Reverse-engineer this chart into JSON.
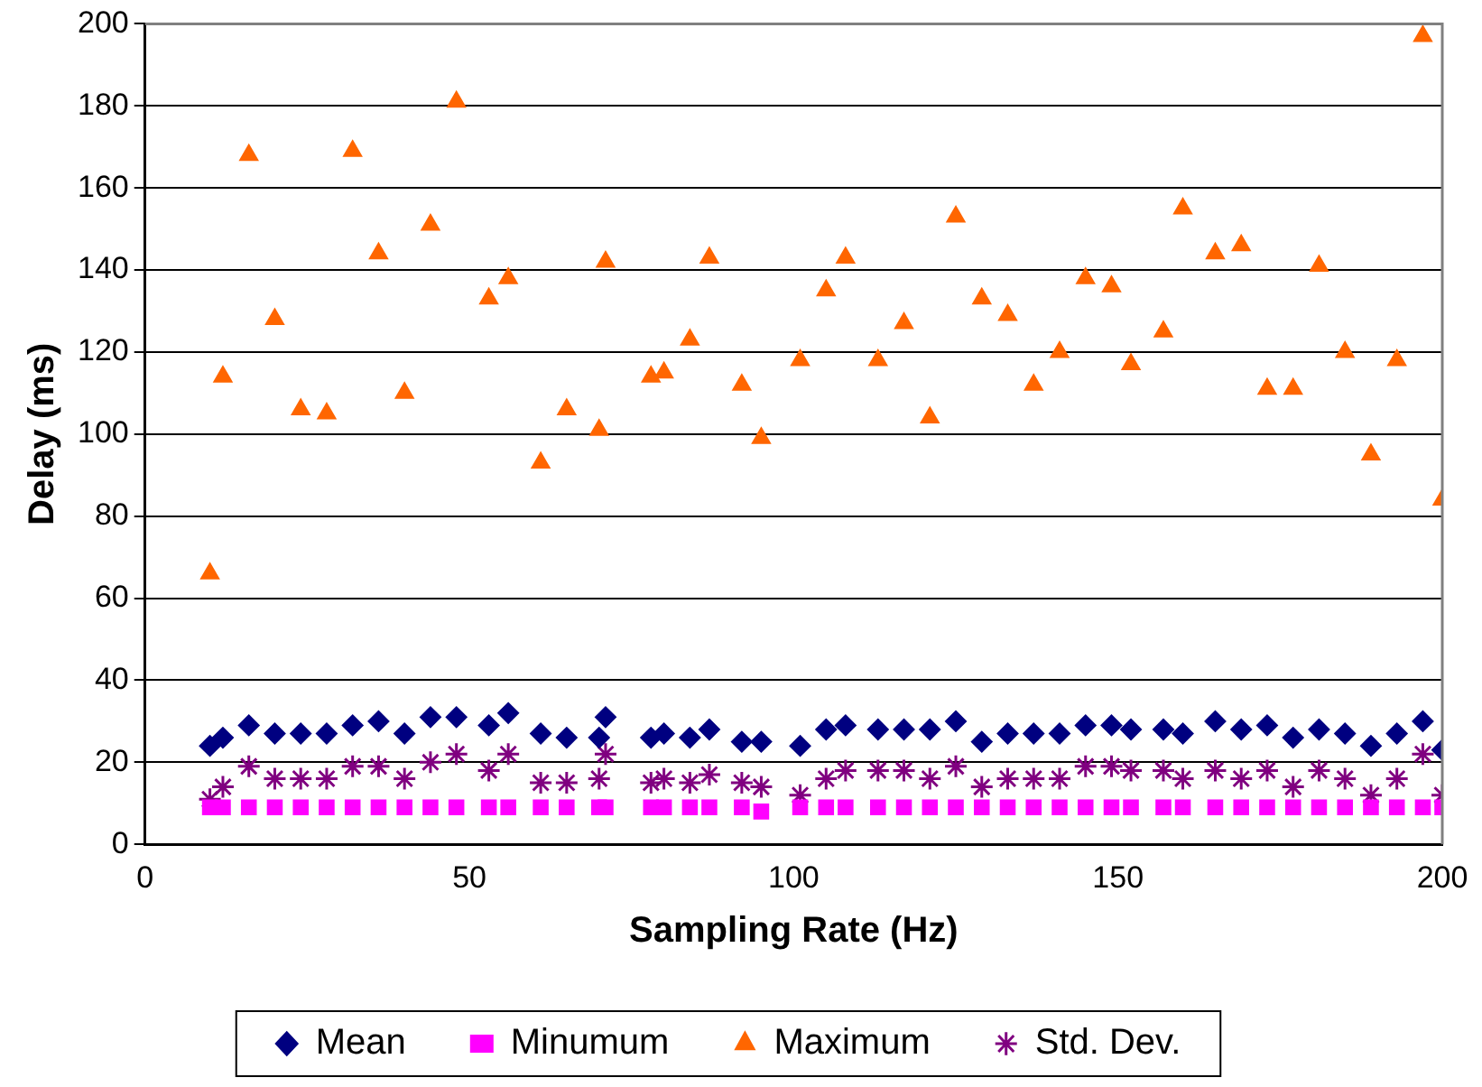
{
  "chart_data": {
    "type": "scatter",
    "xlabel": "Sampling Rate (Hz)",
    "ylabel": "Delay (ms)",
    "x": [
      10,
      12,
      16,
      20,
      24,
      28,
      32,
      36,
      40,
      44,
      48,
      53,
      56,
      61,
      65,
      70,
      71,
      78,
      80,
      84,
      87,
      92,
      95,
      101,
      105,
      108,
      113,
      117,
      121,
      125,
      129,
      133,
      137,
      141,
      145,
      149,
      152,
      157,
      160,
      165,
      169,
      173,
      177,
      181,
      185,
      189,
      193,
      197,
      200
    ],
    "series": [
      {
        "name": "Mean",
        "color": "#000080",
        "marker": "diamond",
        "values": [
          24,
          26,
          29,
          27,
          27,
          27,
          29,
          30,
          27,
          31,
          31,
          29,
          32,
          27,
          26,
          26,
          31,
          26,
          27,
          26,
          28,
          25,
          25,
          24,
          28,
          29,
          28,
          28,
          28,
          30,
          25,
          27,
          27,
          27,
          29,
          29,
          28,
          28,
          27,
          30,
          28,
          29,
          26,
          28,
          27,
          24,
          27,
          30,
          23
        ]
      },
      {
        "name": "Minumum",
        "color": "#ff00ff",
        "marker": "square",
        "values": [
          9,
          9,
          9,
          9,
          9,
          9,
          9,
          9,
          9,
          9,
          9,
          9,
          9,
          9,
          9,
          9,
          9,
          9,
          9,
          9,
          9,
          9,
          8,
          9,
          9,
          9,
          9,
          9,
          9,
          9,
          9,
          9,
          9,
          9,
          9,
          9,
          9,
          9,
          9,
          9,
          9,
          9,
          9,
          9,
          9,
          9,
          9,
          9,
          9
        ]
      },
      {
        "name": "Maximum",
        "color": "#ff6600",
        "marker": "triangle",
        "values": [
          66,
          114,
          168,
          128,
          106,
          105,
          169,
          144,
          110,
          151,
          181,
          133,
          138,
          93,
          106,
          101,
          142,
          114,
          115,
          123,
          143,
          112,
          99,
          118,
          135,
          143,
          118,
          127,
          104,
          153,
          133,
          129,
          112,
          120,
          138,
          136,
          117,
          125,
          155,
          144,
          146,
          111,
          111,
          141,
          120,
          95,
          118,
          197,
          84
        ]
      },
      {
        "name": "Std. Dev.",
        "color": "#800080",
        "marker": "cross",
        "values": [
          11,
          14,
          19,
          16,
          16,
          16,
          19,
          19,
          16,
          20,
          22,
          18,
          22,
          15,
          15,
          16,
          22,
          15,
          16,
          15,
          17,
          15,
          14,
          12,
          16,
          18,
          18,
          18,
          16,
          19,
          14,
          16,
          16,
          16,
          19,
          19,
          18,
          18,
          16,
          18,
          16,
          18,
          14,
          18,
          16,
          12,
          16,
          22,
          12
        ]
      }
    ],
    "xlim": [
      0,
      200
    ],
    "xticks": [
      0,
      50,
      100,
      150,
      200
    ],
    "ylim": [
      0,
      200
    ],
    "yticks": [
      0,
      20,
      40,
      60,
      80,
      100,
      120,
      140,
      160,
      180,
      200
    ],
    "grid": "y",
    "legend": "bottom"
  }
}
